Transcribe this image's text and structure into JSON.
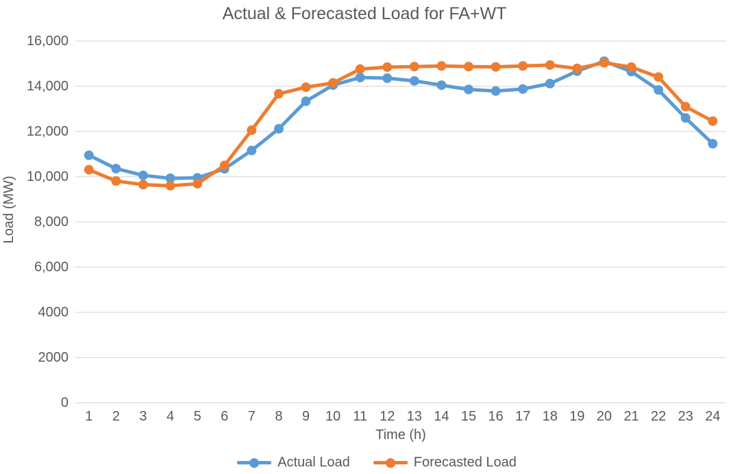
{
  "chart_data": {
    "type": "line",
    "title": "Actual & Forecasted Load for FA+WT",
    "xlabel": "Time (h)",
    "ylabel": "Load (MW)",
    "x": [
      1,
      2,
      3,
      4,
      5,
      6,
      7,
      8,
      9,
      10,
      11,
      12,
      13,
      14,
      15,
      16,
      17,
      18,
      19,
      20,
      21,
      22,
      23,
      24
    ],
    "series": [
      {
        "name": "Actual Load",
        "color": "#5B9BD5",
        "values": [
          10950,
          10360,
          10060,
          9930,
          9950,
          10350,
          11160,
          12120,
          13340,
          14050,
          14390,
          14360,
          14240,
          14050,
          13860,
          13790,
          13880,
          14120,
          14670,
          15110,
          14650,
          13840,
          12600,
          11460
        ]
      },
      {
        "name": "Forecasted Load",
        "color": "#ED7D31",
        "values": [
          10310,
          9810,
          9650,
          9600,
          9690,
          10500,
          12060,
          13670,
          13960,
          14150,
          14760,
          14850,
          14870,
          14900,
          14870,
          14860,
          14900,
          14940,
          14790,
          15040,
          14850,
          14410,
          13100,
          12460
        ]
      }
    ],
    "ylim": [
      0,
      16000
    ],
    "ytick_interval": 2000,
    "ytick_labels": [
      "0",
      "2000",
      "4000",
      "6,000",
      "8,000",
      "10,000",
      "12,000",
      "14,000",
      "16,000"
    ],
    "grid": true,
    "grid_color": "#D9D9D9",
    "text_color": "#595959",
    "legend_position": "bottom"
  }
}
